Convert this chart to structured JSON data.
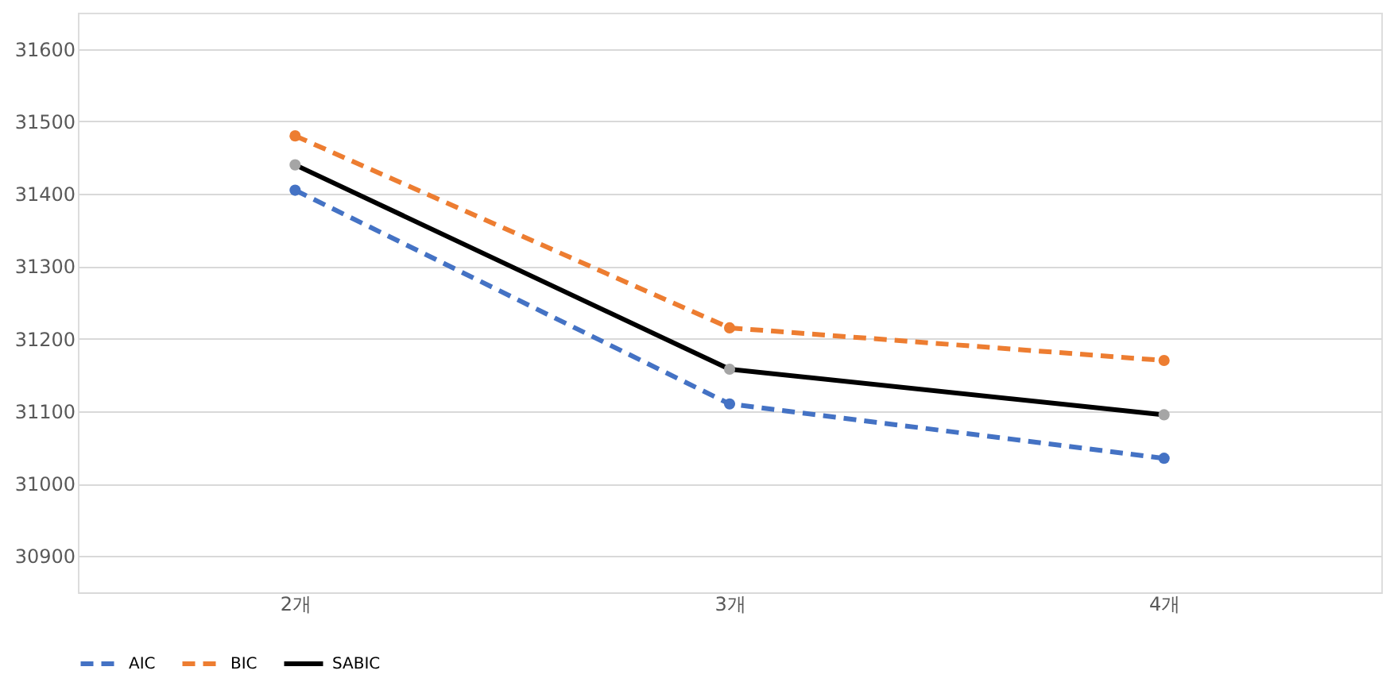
{
  "chart_data": {
    "type": "line",
    "categories": [
      "2개",
      "3개",
      "4개"
    ],
    "series": [
      {
        "name": "AIC",
        "color": "#4472c4",
        "values": [
          31405,
          31110,
          31035
        ],
        "line_style": "dashed"
      },
      {
        "name": "BIC",
        "color": "#ed7d31",
        "values": [
          31480,
          31215,
          31170
        ],
        "line_style": "dashed"
      },
      {
        "name": "SABIC",
        "color": "#000000",
        "values": [
          31440,
          31158,
          31095
        ],
        "line_style": "solid"
      }
    ],
    "ylim": [
      30850,
      31650
    ],
    "yticks": [
      30900,
      31000,
      31100,
      31200,
      31300,
      31400,
      31500,
      31600
    ],
    "grid": "y",
    "legend": "bottom",
    "marker": "circle"
  }
}
